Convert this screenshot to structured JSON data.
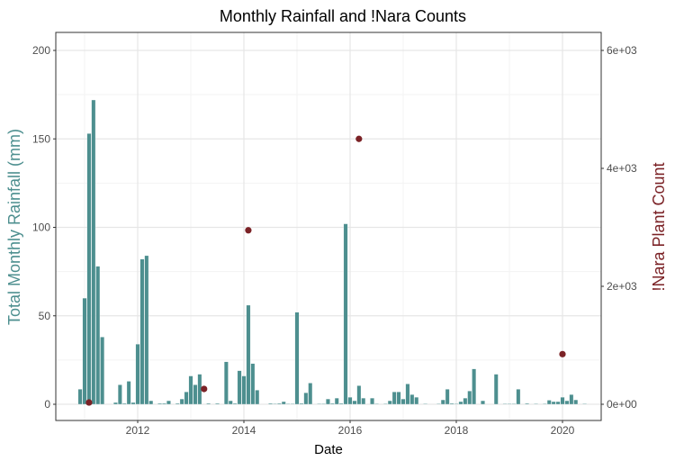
{
  "chart_data": {
    "type": "bar",
    "title": "Monthly Rainfall and !Nara Counts",
    "xlabel": "Date",
    "ylabel": "Total Monthly Rainfall (mm)",
    "ylabel_right": "!Nara Plant Count",
    "ylim": [
      0,
      200
    ],
    "ylim_right": [
      0,
      6000
    ],
    "x_ticks": [
      "2012",
      "2014",
      "2016",
      "2018",
      "2020"
    ],
    "y_ticks": [
      "0",
      "50",
      "100",
      "150",
      "200"
    ],
    "y_ticks_right": [
      "0e+00",
      "2e+03",
      "4e+03",
      "6e+03"
    ],
    "grid": true,
    "colors": {
      "rainfall": "#4d8f8f",
      "count": "#7b2226"
    },
    "rainfall": [
      [
        "2010-12",
        8.5
      ],
      [
        "2011-01",
        60
      ],
      [
        "2011-02",
        153
      ],
      [
        "2011-03",
        172
      ],
      [
        "2011-04",
        78
      ],
      [
        "2011-05",
        38
      ],
      [
        "2011-08",
        1
      ],
      [
        "2011-09",
        11
      ],
      [
        "2011-10",
        0.5
      ],
      [
        "2011-11",
        13
      ],
      [
        "2011-12",
        1
      ],
      [
        "2012-01",
        34
      ],
      [
        "2012-02",
        82
      ],
      [
        "2012-03",
        84
      ],
      [
        "2012-04",
        2
      ],
      [
        "2012-06",
        0.5
      ],
      [
        "2012-07",
        0.5
      ],
      [
        "2012-08",
        2
      ],
      [
        "2012-10",
        0.5
      ],
      [
        "2012-11",
        3
      ],
      [
        "2012-12",
        7
      ],
      [
        "2013-01",
        16
      ],
      [
        "2013-02",
        11
      ],
      [
        "2013-03",
        17
      ],
      [
        "2013-05",
        0.5
      ],
      [
        "2013-07",
        0.5
      ],
      [
        "2013-09",
        24
      ],
      [
        "2013-10",
        2
      ],
      [
        "2013-11",
        0.5
      ],
      [
        "2013-12",
        19
      ],
      [
        "2014-01",
        16
      ],
      [
        "2014-02",
        56
      ],
      [
        "2014-03",
        23
      ],
      [
        "2014-04",
        8
      ],
      [
        "2014-07",
        0.5
      ],
      [
        "2014-08",
        0.3
      ],
      [
        "2014-09",
        0.5
      ],
      [
        "2014-10",
        1.5
      ],
      [
        "2014-11",
        0.3
      ],
      [
        "2014-12",
        0.3
      ],
      [
        "2015-01",
        52
      ],
      [
        "2015-02",
        0.5
      ],
      [
        "2015-03",
        6.5
      ],
      [
        "2015-04",
        12
      ],
      [
        "2015-06",
        0.3
      ],
      [
        "2015-07",
        0.3
      ],
      [
        "2015-08",
        3
      ],
      [
        "2015-09",
        0.5
      ],
      [
        "2015-10",
        3.5
      ],
      [
        "2015-11",
        0.5
      ],
      [
        "2015-12",
        102
      ],
      [
        "2016-01",
        4
      ],
      [
        "2016-02",
        2
      ],
      [
        "2016-03",
        10.5
      ],
      [
        "2016-04",
        3.5
      ],
      [
        "2016-06",
        3.5
      ],
      [
        "2016-07",
        0.3
      ],
      [
        "2016-09",
        0.3
      ],
      [
        "2016-10",
        2
      ],
      [
        "2016-11",
        7
      ],
      [
        "2016-12",
        7
      ],
      [
        "2017-01",
        3
      ],
      [
        "2017-02",
        11.5
      ],
      [
        "2017-03",
        5.5
      ],
      [
        "2017-04",
        4
      ],
      [
        "2017-06",
        0.3
      ],
      [
        "2017-09",
        0.3
      ],
      [
        "2017-10",
        2.5
      ],
      [
        "2017-11",
        8.5
      ],
      [
        "2017-12",
        0.5
      ],
      [
        "2018-01",
        0.3
      ],
      [
        "2018-02",
        1.5
      ],
      [
        "2018-03",
        3.5
      ],
      [
        "2018-04",
        7.5
      ],
      [
        "2018-05",
        20
      ],
      [
        "2018-07",
        2
      ],
      [
        "2018-10",
        17
      ],
      [
        "2018-12",
        0.3
      ],
      [
        "2019-01",
        0.3
      ],
      [
        "2019-02",
        0.3
      ],
      [
        "2019-03",
        8.5
      ],
      [
        "2019-05",
        0.5
      ],
      [
        "2019-07",
        0.3
      ],
      [
        "2019-09",
        0.3
      ],
      [
        "2019-10",
        2.3
      ],
      [
        "2019-11",
        1.5
      ],
      [
        "2019-12",
        1.5
      ],
      [
        "2020-01",
        4
      ],
      [
        "2020-02",
        2
      ],
      [
        "2020-03",
        5.5
      ],
      [
        "2020-04",
        2.5
      ],
      [
        "2020-06",
        0.3
      ]
    ],
    "counts": [
      [
        "2011-02",
        30
      ],
      [
        "2013-04",
        260
      ],
      [
        "2014-02",
        2950
      ],
      [
        "2016-03",
        4500
      ],
      [
        "2020-01",
        850
      ]
    ]
  }
}
